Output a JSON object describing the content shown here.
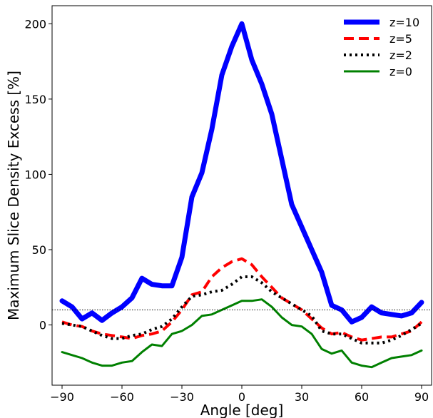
{
  "chart_data": {
    "type": "line",
    "title": "",
    "xlabel": "Angle [deg]",
    "ylabel": "Maximum Slice Density Excess [%]",
    "xlim": [
      -95,
      95
    ],
    "ylim": [
      -40,
      212
    ],
    "xticks": [
      -90,
      -60,
      -30,
      0,
      30,
      60,
      90
    ],
    "xtick_labels": [
      "−90",
      "−60",
      "−30",
      "0",
      "30",
      "60",
      "90"
    ],
    "yticks": [
      0,
      50,
      100,
      150,
      200
    ],
    "ytick_labels": [
      "0",
      "50",
      "100",
      "150",
      "200"
    ],
    "reference_line": {
      "y": 10,
      "style": "dotted",
      "color": "#000000"
    },
    "legend_position": "top-right",
    "grid": false,
    "x": [
      -90,
      -85,
      -80,
      -75,
      -70,
      -65,
      -60,
      -55,
      -50,
      -45,
      -40,
      -35,
      -30,
      -25,
      -20,
      -15,
      -10,
      -5,
      0,
      5,
      10,
      15,
      20,
      25,
      30,
      35,
      40,
      45,
      50,
      55,
      60,
      65,
      70,
      75,
      80,
      85,
      90
    ],
    "series": [
      {
        "name": "z=10",
        "color": "#0000ff",
        "style": "solid",
        "width": 7,
        "values": [
          16,
          12,
          4,
          8,
          3,
          8,
          12,
          18,
          31,
          27,
          26,
          26,
          45,
          85,
          101,
          130,
          166,
          185,
          200,
          176,
          160,
          140,
          110,
          80,
          65,
          50,
          35,
          13,
          10,
          2,
          5,
          12,
          8,
          7,
          6,
          8,
          15
        ]
      },
      {
        "name": "z=5",
        "color": "#ff0000",
        "style": "dashed",
        "width": 4,
        "values": [
          2,
          0,
          -1,
          -4,
          -6,
          -7,
          -8,
          -9,
          -7,
          -6,
          -4,
          2,
          10,
          20,
          22,
          32,
          38,
          42,
          44,
          40,
          32,
          25,
          18,
          14,
          10,
          4,
          -2,
          -6,
          -5,
          -8,
          -10,
          -9,
          -8,
          -8,
          -6,
          -4,
          2
        ]
      },
      {
        "name": "z=2",
        "color": "#000000",
        "style": "dotted",
        "width": 4,
        "values": [
          1,
          0,
          -1,
          -4,
          -7,
          -9,
          -9,
          -7,
          -6,
          -3,
          -1,
          4,
          12,
          19,
          20,
          22,
          23,
          27,
          32,
          32,
          28,
          22,
          18,
          14,
          10,
          6,
          -4,
          -6,
          -6,
          -9,
          -12,
          -12,
          -12,
          -10,
          -7,
          -3,
          1
        ]
      },
      {
        "name": "z=0",
        "color": "#008000",
        "style": "solid",
        "width": 3,
        "values": [
          -18,
          -20,
          -22,
          -25,
          -27,
          -27,
          -25,
          -24,
          -18,
          -13,
          -14,
          -6,
          -4,
          0,
          6,
          7,
          10,
          13,
          16,
          16,
          17,
          12,
          5,
          0,
          -1,
          -6,
          -16,
          -19,
          -17,
          -25,
          -27,
          -28,
          -25,
          -22,
          -21,
          -20,
          -17
        ]
      }
    ]
  }
}
